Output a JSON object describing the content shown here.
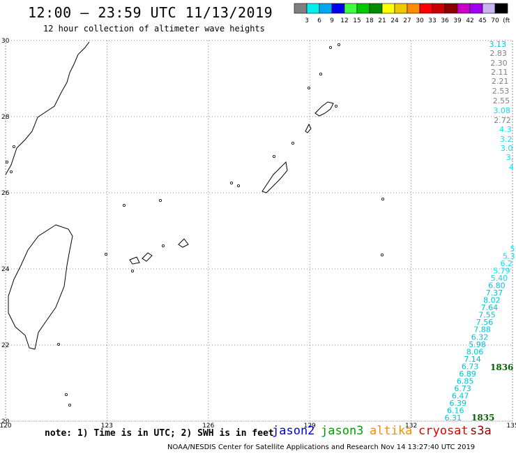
{
  "header": {
    "title": "12:00 – 23:59 UTC 11/13/2019",
    "subtitle": "12 hour collection of altimeter wave heights"
  },
  "colorbar": {
    "labels": [
      "3",
      "6",
      "9",
      "12",
      "15",
      "18",
      "21",
      "24",
      "27",
      "30",
      "33",
      "36",
      "39",
      "42",
      "45",
      "70",
      "(ft)"
    ],
    "colors": [
      "#7f7f7f",
      "#00f0f0",
      "#00a8f0",
      "#0000f0",
      "#40ff40",
      "#00c800",
      "#008c00",
      "#ffff00",
      "#f0c800",
      "#ff8c00",
      "#ff0000",
      "#c80000",
      "#8c0000",
      "#c800c8",
      "#a000f0",
      "#c8b4f0",
      "#000000"
    ]
  },
  "map": {
    "lon_labels": [
      "120",
      "123",
      "126",
      "129",
      "132",
      "135"
    ],
    "lat_labels": [
      "20",
      "22",
      "24",
      "26",
      "28",
      "30"
    ],
    "lon_range": [
      120,
      135
    ],
    "lat_range": [
      20,
      30
    ]
  },
  "tracks": [
    {
      "satellite": "jason3",
      "values": [
        {
          "v": "3.13",
          "color": "#00c0d8"
        },
        {
          "v": "2.83",
          "color": "#808080"
        },
        {
          "v": "2.30",
          "color": "#808080"
        },
        {
          "v": "2.11",
          "color": "#808080"
        },
        {
          "v": "2.21",
          "color": "#808080"
        },
        {
          "v": "2.53",
          "color": "#808080"
        },
        {
          "v": "2.55",
          "color": "#808080"
        },
        {
          "v": "3.08",
          "color": "#00e0f0"
        },
        {
          "v": "2.72",
          "color": "#808080"
        },
        {
          "v": "4.3",
          "color": "#00e0f0"
        },
        {
          "v": "3.2",
          "color": "#00e0f0"
        },
        {
          "v": "3.0",
          "color": "#00e0f0"
        },
        {
          "v": "3.",
          "color": "#00e0f0"
        },
        {
          "v": "4",
          "color": "#00e0f0"
        }
      ]
    },
    {
      "satellite": "jason3",
      "values": [
        {
          "v": "5.",
          "color": "#00e0f0"
        },
        {
          "v": "5.3",
          "color": "#00e0f0"
        },
        {
          "v": "6.2",
          "color": "#00e0f0"
        },
        {
          "v": "5.79",
          "color": "#00e0f0"
        },
        {
          "v": "5.40",
          "color": "#00e0f0"
        },
        {
          "v": "6.80",
          "color": "#00c0d8"
        },
        {
          "v": "7.37",
          "color": "#00c0d8"
        },
        {
          "v": "8.02",
          "color": "#00c0d8"
        },
        {
          "v": "7.64",
          "color": "#00c0d8"
        },
        {
          "v": "7.55",
          "color": "#00c0d8"
        },
        {
          "v": "7.56",
          "color": "#00c0d8"
        },
        {
          "v": "7.88",
          "color": "#00c0d8"
        },
        {
          "v": "6.32",
          "color": "#00c0d8"
        },
        {
          "v": "5.98",
          "color": "#00c0d8"
        },
        {
          "v": "8.06",
          "color": "#00c0d8"
        },
        {
          "v": "7.14",
          "color": "#00c0d8"
        },
        {
          "v": "6.73",
          "color": "#00c0d8"
        },
        {
          "v": "6.89",
          "color": "#00c0d8"
        },
        {
          "v": "6.85",
          "color": "#00c0d8"
        },
        {
          "v": "6.73",
          "color": "#00c0d8"
        },
        {
          "v": "6.47",
          "color": "#00c0d8"
        },
        {
          "v": "6.39",
          "color": "#00c0d8"
        },
        {
          "v": "6.16",
          "color": "#00c0d8"
        },
        {
          "v": "6.31",
          "color": "#00c0d8"
        }
      ]
    }
  ],
  "time_marks": [
    {
      "label": "1836",
      "color": "#006400"
    },
    {
      "label": "1835",
      "color": "#006400"
    }
  ],
  "footer": {
    "note": "note: 1) Time is in UTC; 2) SWH is in feet",
    "satellites": [
      {
        "name": "jason2",
        "color": "#0000d0"
      },
      {
        "name": "jason3",
        "color": "#00a000"
      },
      {
        "name": "altika",
        "color": "#f09000"
      },
      {
        "name": "cryosat",
        "color": "#e00000"
      },
      {
        "name": "s3a",
        "color": "#8b0000"
      }
    ],
    "credit": "NOAA/NESDIS Center for Satellite Applications and Research    Nov 14 13:27:40 UTC 2019"
  }
}
